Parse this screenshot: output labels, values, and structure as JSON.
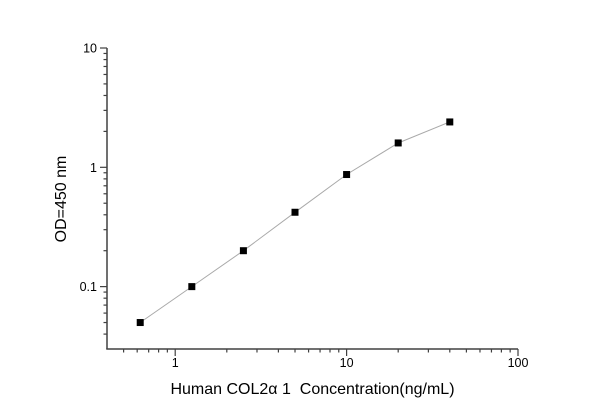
{
  "figure": {
    "background": "#ffffff"
  },
  "chart_data": {
    "type": "line",
    "title": "",
    "xlabel": "Human COL2α 1  Concentration(ng/mL)",
    "ylabel": "OD=450 nm",
    "x": [
      0.625,
      1.25,
      2.5,
      5,
      10,
      20,
      40
    ],
    "y": [
      0.05,
      0.1,
      0.2,
      0.42,
      0.87,
      1.6,
      2.4
    ],
    "xscale": "log",
    "yscale": "log",
    "xlim": [
      0.4,
      100
    ],
    "ylim": [
      0.03,
      10
    ],
    "x_major_ticks": [
      1,
      10,
      100
    ],
    "x_tick_labels": [
      "1",
      "10",
      "100"
    ],
    "y_major_ticks": [
      0.1,
      1,
      10
    ],
    "y_tick_labels": [
      "0.1",
      "1",
      "10"
    ],
    "grid": false,
    "legend": "none",
    "marker": "filled-square",
    "marker_size": 7,
    "marker_color": "#000000",
    "line_color": "#a9a9a9",
    "axis_color": "#404040",
    "text_color": "#000000"
  }
}
